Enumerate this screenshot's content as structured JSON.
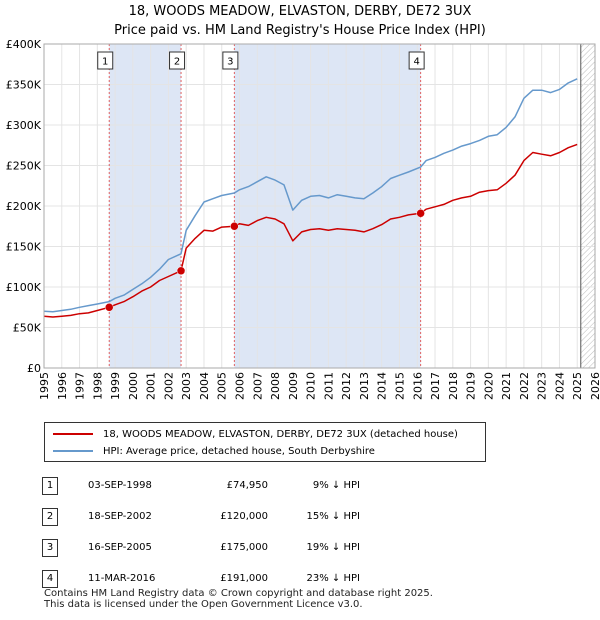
{
  "title_line1": "18, WOODS MEADOW, ELVASTON, DERBY, DE72 3UX",
  "title_line2": "Price paid vs. HM Land Registry's House Price Index (HPI)",
  "colors": {
    "property": "#cc0000",
    "hpi": "#6699cc",
    "shade": "#dde6f5",
    "marker_line": "#e06060"
  },
  "legend": {
    "property_label": "18, WOODS MEADOW, ELVASTON, DERBY, DE72 3UX (detached house)",
    "hpi_label": "HPI: Average price, detached house, South Derbyshire"
  },
  "transactions": [
    {
      "num": "1",
      "date": "03-SEP-1998",
      "price": "£74,950",
      "hpi": "9% ↓ HPI"
    },
    {
      "num": "2",
      "date": "18-SEP-2002",
      "price": "£120,000",
      "hpi": "15% ↓ HPI"
    },
    {
      "num": "3",
      "date": "16-SEP-2005",
      "price": "£175,000",
      "hpi": "19% ↓ HPI"
    },
    {
      "num": "4",
      "date": "11-MAR-2016",
      "price": "£191,000",
      "hpi": "23% ↓ HPI"
    }
  ],
  "footer_line1": "Contains HM Land Registry data © Crown copyright and database right 2025.",
  "footer_line2": "This data is licensed under the Open Government Licence v3.0.",
  "chart_data": {
    "type": "line",
    "title": "18, WOODS MEADOW, ELVASTON, DERBY, DE72 3UX — Price paid vs. HM Land Registry's House Price Index (HPI)",
    "xlabel": "",
    "ylabel": "",
    "xlim": [
      1995,
      2026
    ],
    "ylim": [
      0,
      400000
    ],
    "x_ticks": [
      "1995",
      "1996",
      "1997",
      "1998",
      "1999",
      "2000",
      "2001",
      "2002",
      "2003",
      "2004",
      "2005",
      "2006",
      "2007",
      "2008",
      "2009",
      "2010",
      "2011",
      "2012",
      "2013",
      "2014",
      "2015",
      "2016",
      "2017",
      "2018",
      "2019",
      "2020",
      "2021",
      "2022",
      "2023",
      "2024",
      "2025",
      "2026"
    ],
    "y_ticks": [
      {
        "value": 0,
        "label": "£0"
      },
      {
        "value": 50000,
        "label": "£50K"
      },
      {
        "value": 100000,
        "label": "£100K"
      },
      {
        "value": 150000,
        "label": "£150K"
      },
      {
        "value": 200000,
        "label": "£200K"
      },
      {
        "value": 250000,
        "label": "£250K"
      },
      {
        "value": 300000,
        "label": "£300K"
      },
      {
        "value": 350000,
        "label": "£350K"
      },
      {
        "value": 400000,
        "label": "£400K"
      }
    ],
    "shaded_periods": [
      [
        1998.67,
        2002.71
      ],
      [
        2005.71,
        2016.19
      ]
    ],
    "forecast_start": 2025.2,
    "sales": [
      {
        "label": "1",
        "x": 1998.67,
        "y": 74950
      },
      {
        "label": "2",
        "x": 2002.71,
        "y": 120000
      },
      {
        "label": "3",
        "x": 2005.71,
        "y": 175000
      },
      {
        "label": "4",
        "x": 2016.19,
        "y": 191000
      }
    ],
    "series": [
      {
        "name": "18, WOODS MEADOW, ELVASTON, DERBY, DE72 3UX (detached house)",
        "x": [
          1995.0,
          1995.5,
          1996.0,
          1996.5,
          1997.0,
          1997.5,
          1998.0,
          1998.67,
          1999.0,
          1999.5,
          2000.0,
          2000.5,
          2001.0,
          2001.5,
          2002.0,
          2002.71,
          2003.0,
          2003.5,
          2004.0,
          2004.5,
          2005.0,
          2005.71,
          2006.0,
          2006.5,
          2007.0,
          2007.5,
          2008.0,
          2008.5,
          2009.0,
          2009.5,
          2010.0,
          2010.5,
          2011.0,
          2011.5,
          2012.0,
          2012.5,
          2013.0,
          2013.5,
          2014.0,
          2014.5,
          2015.0,
          2015.5,
          2016.19,
          2016.5,
          2017.0,
          2017.5,
          2018.0,
          2018.5,
          2019.0,
          2019.5,
          2020.0,
          2020.5,
          2021.0,
          2021.5,
          2022.0,
          2022.5,
          2023.0,
          2023.5,
          2024.0,
          2024.5,
          2025.0
        ],
        "values": [
          64000,
          63000,
          64000,
          65000,
          67000,
          68000,
          71000,
          74950,
          78000,
          82000,
          88000,
          95000,
          100000,
          108000,
          113000,
          120000,
          148000,
          160000,
          170000,
          169000,
          174000,
          175000,
          178000,
          176000,
          182000,
          186000,
          184000,
          178000,
          157000,
          168000,
          171000,
          172000,
          170000,
          172000,
          171000,
          170000,
          168000,
          172000,
          177000,
          184000,
          186000,
          189000,
          191000,
          196000,
          199000,
          202000,
          207000,
          210000,
          212000,
          217000,
          219000,
          220000,
          228000,
          238000,
          256000,
          266000,
          264000,
          262000,
          266000,
          272000,
          276000
        ]
      },
      {
        "name": "HPI: Average price, detached house, South Derbyshire",
        "x": [
          1995.0,
          1995.5,
          1996.0,
          1996.5,
          1997.0,
          1997.5,
          1998.0,
          1998.67,
          1999.0,
          1999.5,
          2000.0,
          2000.5,
          2001.0,
          2001.5,
          2002.0,
          2002.71,
          2003.0,
          2003.5,
          2004.0,
          2004.5,
          2005.0,
          2005.71,
          2006.0,
          2006.5,
          2007.0,
          2007.5,
          2008.0,
          2008.5,
          2009.0,
          2009.5,
          2010.0,
          2010.5,
          2011.0,
          2011.5,
          2012.0,
          2012.5,
          2013.0,
          2013.5,
          2014.0,
          2014.5,
          2015.0,
          2015.5,
          2016.19,
          2016.5,
          2017.0,
          2017.5,
          2018.0,
          2018.5,
          2019.0,
          2019.5,
          2020.0,
          2020.5,
          2021.0,
          2021.5,
          2022.0,
          2022.5,
          2023.0,
          2023.5,
          2024.0,
          2024.5,
          2025.0
        ],
        "values": [
          70000,
          69500,
          71000,
          72500,
          75000,
          77000,
          79000,
          82000,
          86000,
          90000,
          97000,
          104000,
          112000,
          122000,
          134000,
          141000,
          170000,
          188000,
          205000,
          209000,
          213000,
          216000,
          220000,
          224000,
          230000,
          236000,
          232000,
          226000,
          195000,
          207000,
          212000,
          213000,
          210000,
          214000,
          212000,
          210000,
          209000,
          216000,
          224000,
          234000,
          238000,
          242000,
          248000,
          256000,
          260000,
          265000,
          269000,
          274000,
          277000,
          281000,
          286000,
          288000,
          297000,
          310000,
          333000,
          343000,
          343000,
          340000,
          344000,
          352000,
          357000
        ]
      }
    ]
  }
}
